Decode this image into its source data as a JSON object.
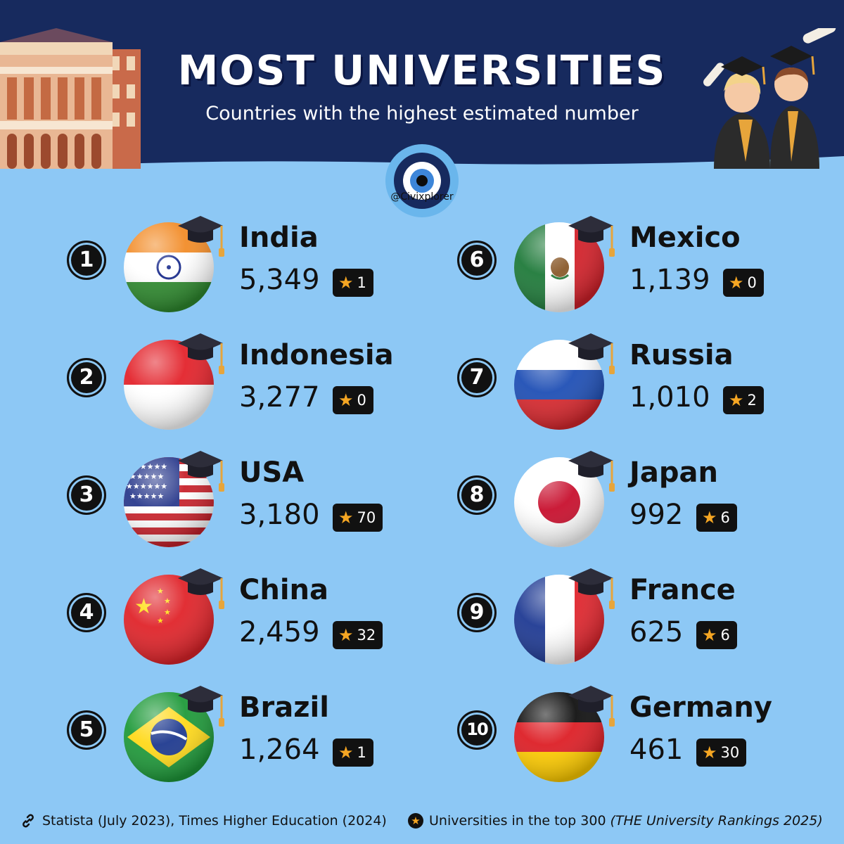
{
  "header": {
    "title": "MOST UNIVERSITIES",
    "subtitle": "Countries with the highest estimated number",
    "handle": "@Civixplorer"
  },
  "colors": {
    "header_bg": "#172a5e",
    "body_bg": "#8dc8f5",
    "badge_bg": "#111111",
    "star": "#f5a623"
  },
  "items": [
    {
      "rank": "1",
      "country": "India",
      "count": "5,349",
      "top300": "1",
      "flag": "india-flag-icon"
    },
    {
      "rank": "2",
      "country": "Indonesia",
      "count": "3,277",
      "top300": "0",
      "flag": "indonesia-flag-icon"
    },
    {
      "rank": "3",
      "country": "USA",
      "count": "3,180",
      "top300": "70",
      "flag": "usa-flag-icon"
    },
    {
      "rank": "4",
      "country": "China",
      "count": "2,459",
      "top300": "32",
      "flag": "china-flag-icon"
    },
    {
      "rank": "5",
      "country": "Brazil",
      "count": "1,264",
      "top300": "1",
      "flag": "brazil-flag-icon"
    },
    {
      "rank": "6",
      "country": "Mexico",
      "count": "1,139",
      "top300": "0",
      "flag": "mexico-flag-icon"
    },
    {
      "rank": "7",
      "country": "Russia",
      "count": "1,010",
      "top300": "2",
      "flag": "russia-flag-icon"
    },
    {
      "rank": "8",
      "country": "Japan",
      "count": "992",
      "top300": "6",
      "flag": "japan-flag-icon"
    },
    {
      "rank": "9",
      "country": "France",
      "count": "625",
      "top300": "6",
      "flag": "france-flag-icon"
    },
    {
      "rank": "10",
      "country": "Germany",
      "count": "461",
      "top300": "30",
      "flag": "germany-flag-icon"
    }
  ],
  "footer": {
    "source": "Statista (July 2023), Times Higher Education (2024)",
    "legend": "Universities in the top 300",
    "legend_note": "(THE University Rankings 2025)"
  }
}
